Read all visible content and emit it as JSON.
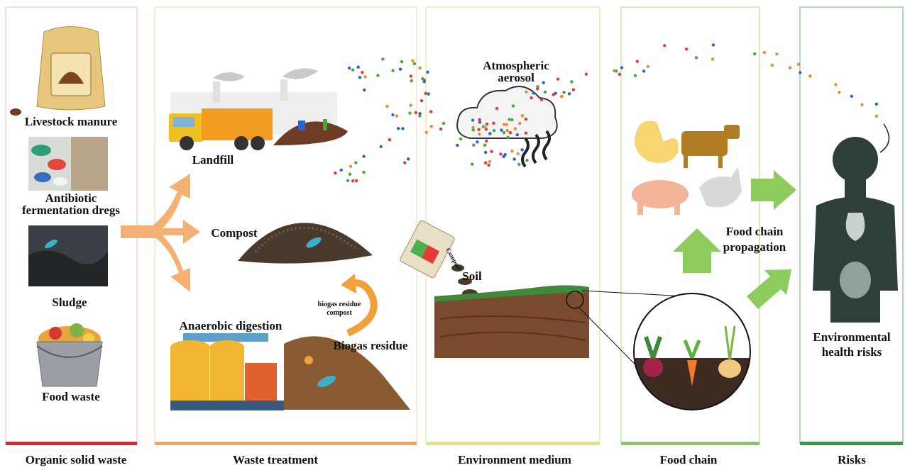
{
  "columns": [
    {
      "label": "Organic solid waste"
    },
    {
      "label": "Waste treatment"
    },
    {
      "label": "Environment medium"
    },
    {
      "label": "Food chain"
    },
    {
      "label": "Risks"
    }
  ],
  "sources": [
    {
      "lines": [
        "Livestock manure"
      ]
    },
    {
      "lines": [
        "Antibiotic",
        "fermentation dregs"
      ]
    },
    {
      "lines": [
        "Sludge"
      ]
    },
    {
      "lines": [
        "Food waste"
      ]
    }
  ],
  "treatments": {
    "landfill": "Landfill",
    "compost": "Compost",
    "anaerobic_digestion": "Anaerobic digestion",
    "biogas_residue": "Biogas residue",
    "biogas_residue_compost": [
      "biogas residue",
      "compost"
    ]
  },
  "environment": {
    "aerosol": [
      "Atmospheric",
      "aerosol"
    ],
    "soil": "Soil",
    "compost_bag": "Compost"
  },
  "food_chain": {
    "propagation": [
      "Food chain",
      "propagation"
    ]
  },
  "risks": {
    "label": [
      "Environmental",
      "health risks"
    ]
  }
}
